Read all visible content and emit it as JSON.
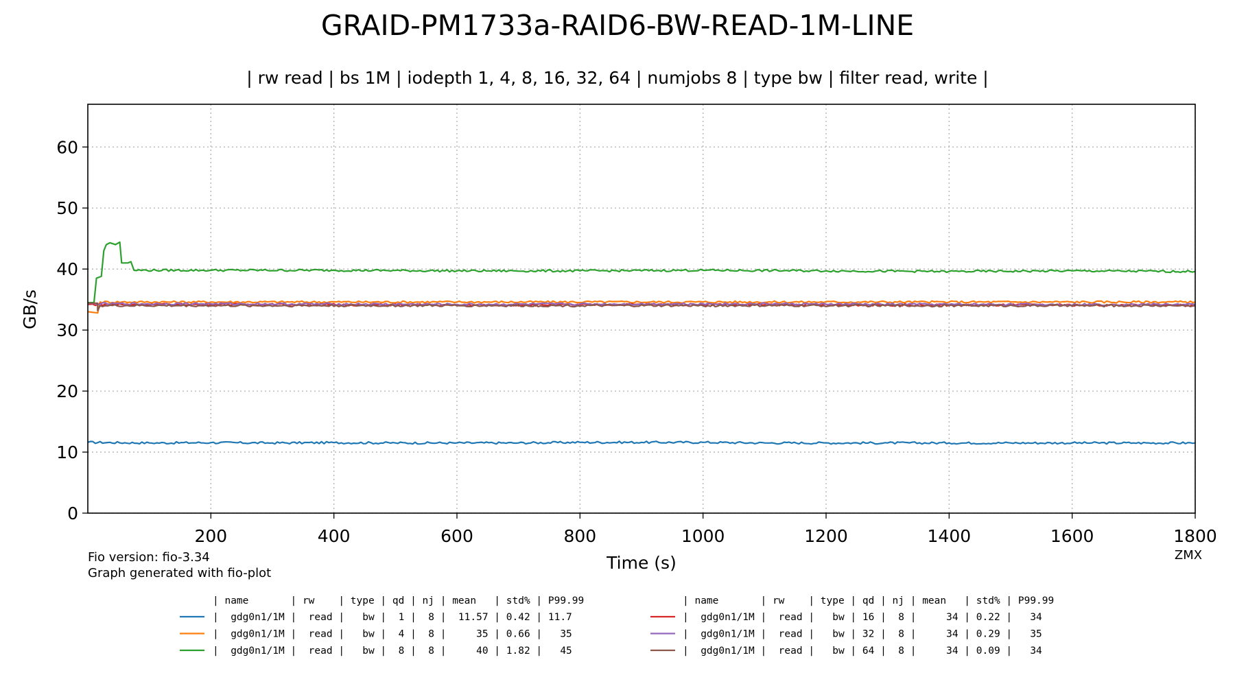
{
  "chart_data": {
    "type": "line",
    "title": "GRAID-PM1733a-RAID6-BW-READ-1M-LINE",
    "subtitle": "| rw read | bs 1M | iodepth 1, 4, 8, 16, 32, 64 | numjobs 8 | type bw | filter read, write |",
    "xlabel": "Time (s)",
    "ylabel": "GB/s",
    "xlim": [
      0,
      1800
    ],
    "ylim": [
      0,
      67
    ],
    "xticks": [
      200,
      400,
      600,
      800,
      1000,
      1200,
      1400,
      1600,
      1800
    ],
    "yticks": [
      0,
      10,
      20,
      30,
      40,
      50,
      60
    ],
    "grid": true,
    "footer_left": [
      "Fio version: fio-3.34",
      "Graph generated with fio-plot"
    ],
    "footer_right": "ZMX",
    "legend_header": "| name       | rw    | type | qd | nj | mean   | std% | P99.99",
    "series": [
      {
        "color": "#1f77b4",
        "legend": "|  gdg0n1/1M |  read |   bw |  1 |  8 |  11.57 | 0.42 | 11.7",
        "points": [
          [
            0,
            11.6
          ],
          [
            100,
            11.5
          ],
          [
            200,
            11.55
          ],
          [
            300,
            11.5
          ],
          [
            400,
            11.55
          ],
          [
            500,
            11.5
          ],
          [
            600,
            11.5
          ],
          [
            700,
            11.5
          ],
          [
            800,
            11.6
          ],
          [
            900,
            11.6
          ],
          [
            1000,
            11.6
          ],
          [
            1100,
            11.5
          ],
          [
            1200,
            11.5
          ],
          [
            1300,
            11.5
          ],
          [
            1400,
            11.5
          ],
          [
            1500,
            11.5
          ],
          [
            1600,
            11.5
          ],
          [
            1700,
            11.5
          ],
          [
            1800,
            11.5
          ]
        ]
      },
      {
        "color": "#ff7f0e",
        "legend": "|  gdg0n1/1M |  read |   bw |  4 |  8 |     35 | 0.66 |   35",
        "points": [
          [
            0,
            33.0
          ],
          [
            16,
            32.8
          ],
          [
            20,
            34.6
          ],
          [
            200,
            34.6
          ],
          [
            600,
            34.6
          ],
          [
            1000,
            34.6
          ],
          [
            1400,
            34.6
          ],
          [
            1800,
            34.6
          ]
        ]
      },
      {
        "color": "#2ca02c",
        "legend": "|  gdg0n1/1M |  read |   bw |  8 |  8 |     40 | 1.82 |   45",
        "points": [
          [
            0,
            34.5
          ],
          [
            10,
            34.5
          ],
          [
            14,
            38.5
          ],
          [
            22,
            38.8
          ],
          [
            26,
            43.0
          ],
          [
            30,
            44.0
          ],
          [
            36,
            44.3
          ],
          [
            45,
            44.0
          ],
          [
            52,
            44.4
          ],
          [
            55,
            41.0
          ],
          [
            65,
            41.0
          ],
          [
            70,
            41.2
          ],
          [
            75,
            39.8
          ],
          [
            200,
            39.8
          ],
          [
            400,
            39.8
          ],
          [
            600,
            39.7
          ],
          [
            800,
            39.7
          ],
          [
            1000,
            39.8
          ],
          [
            1200,
            39.7
          ],
          [
            1400,
            39.6
          ],
          [
            1600,
            39.7
          ],
          [
            1800,
            39.6
          ]
        ]
      },
      {
        "color": "#d62728",
        "legend": "|  gdg0n1/1M |  read |   bw | 16 |  8 |     34 | 0.22 |   34",
        "points": [
          [
            0,
            34.2
          ],
          [
            200,
            34.2
          ],
          [
            600,
            34.1
          ],
          [
            1000,
            34.2
          ],
          [
            1400,
            34.1
          ],
          [
            1800,
            34.1
          ]
        ]
      },
      {
        "color": "#9467bd",
        "legend": "|  gdg0n1/1M |  read |   bw | 32 |  8 |     34 | 0.29 |   35",
        "points": [
          [
            0,
            34.3
          ],
          [
            200,
            34.3
          ],
          [
            600,
            34.2
          ],
          [
            1000,
            34.3
          ],
          [
            1400,
            34.2
          ],
          [
            1800,
            34.2
          ]
        ]
      },
      {
        "color": "#8c564b",
        "legend": "|  gdg0n1/1M |  read |   bw | 64 |  8 |     34 | 0.09 |   34",
        "points": [
          [
            0,
            34.4
          ],
          [
            16,
            34.4
          ],
          [
            16,
            33.2
          ],
          [
            20,
            34.0
          ],
          [
            200,
            34.0
          ],
          [
            600,
            34.0
          ],
          [
            1000,
            34.0
          ],
          [
            1400,
            34.0
          ],
          [
            1800,
            34.0
          ]
        ]
      }
    ]
  }
}
